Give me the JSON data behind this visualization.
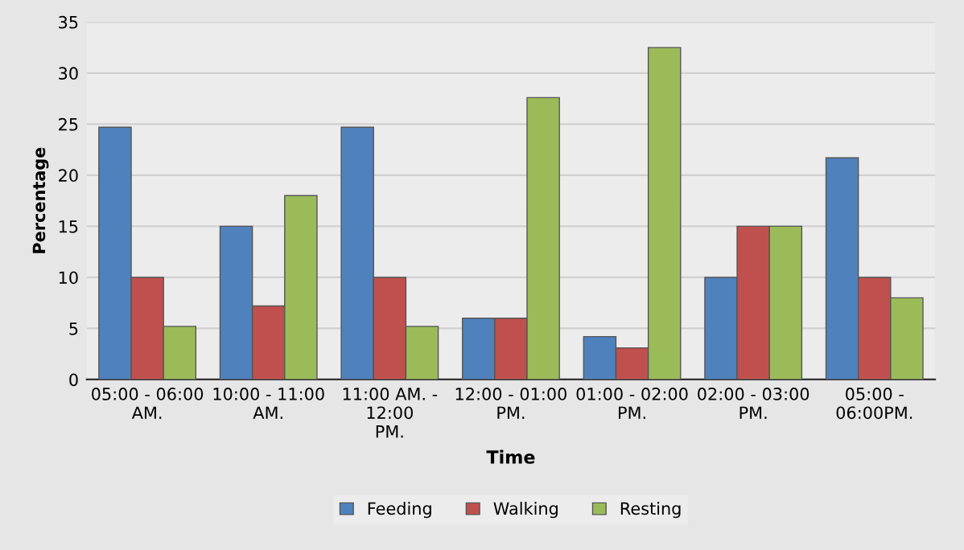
{
  "chart_data": {
    "type": "bar",
    "xlabel": "Time",
    "ylabel": "Percentage",
    "categories": [
      "05:00 - 06:00 AM.",
      "10:00 - 11:00 AM.",
      "11:00 AM. - 12:00 PM.",
      "12:00 - 01:00 PM.",
      "01:00 - 02:00 PM.",
      "02:00 - 03:00 PM.",
      "05:00 - 06:00PM."
    ],
    "series": [
      {
        "name": "Feeding",
        "color": "#4f81bd",
        "values": [
          24.7,
          15,
          24.7,
          6,
          4.2,
          10,
          21.7
        ]
      },
      {
        "name": "Walking",
        "color": "#c0504d",
        "values": [
          10,
          7.2,
          10,
          6,
          3.1,
          15,
          10
        ]
      },
      {
        "name": "Resting",
        "color": "#9bbb59",
        "values": [
          5.2,
          18,
          5.2,
          27.6,
          32.5,
          15,
          8
        ]
      }
    ],
    "ylim": [
      0,
      35
    ],
    "yticks": [
      0,
      5,
      10,
      15,
      20,
      25,
      30,
      35
    ],
    "grid": "y",
    "legend": "bottom"
  }
}
